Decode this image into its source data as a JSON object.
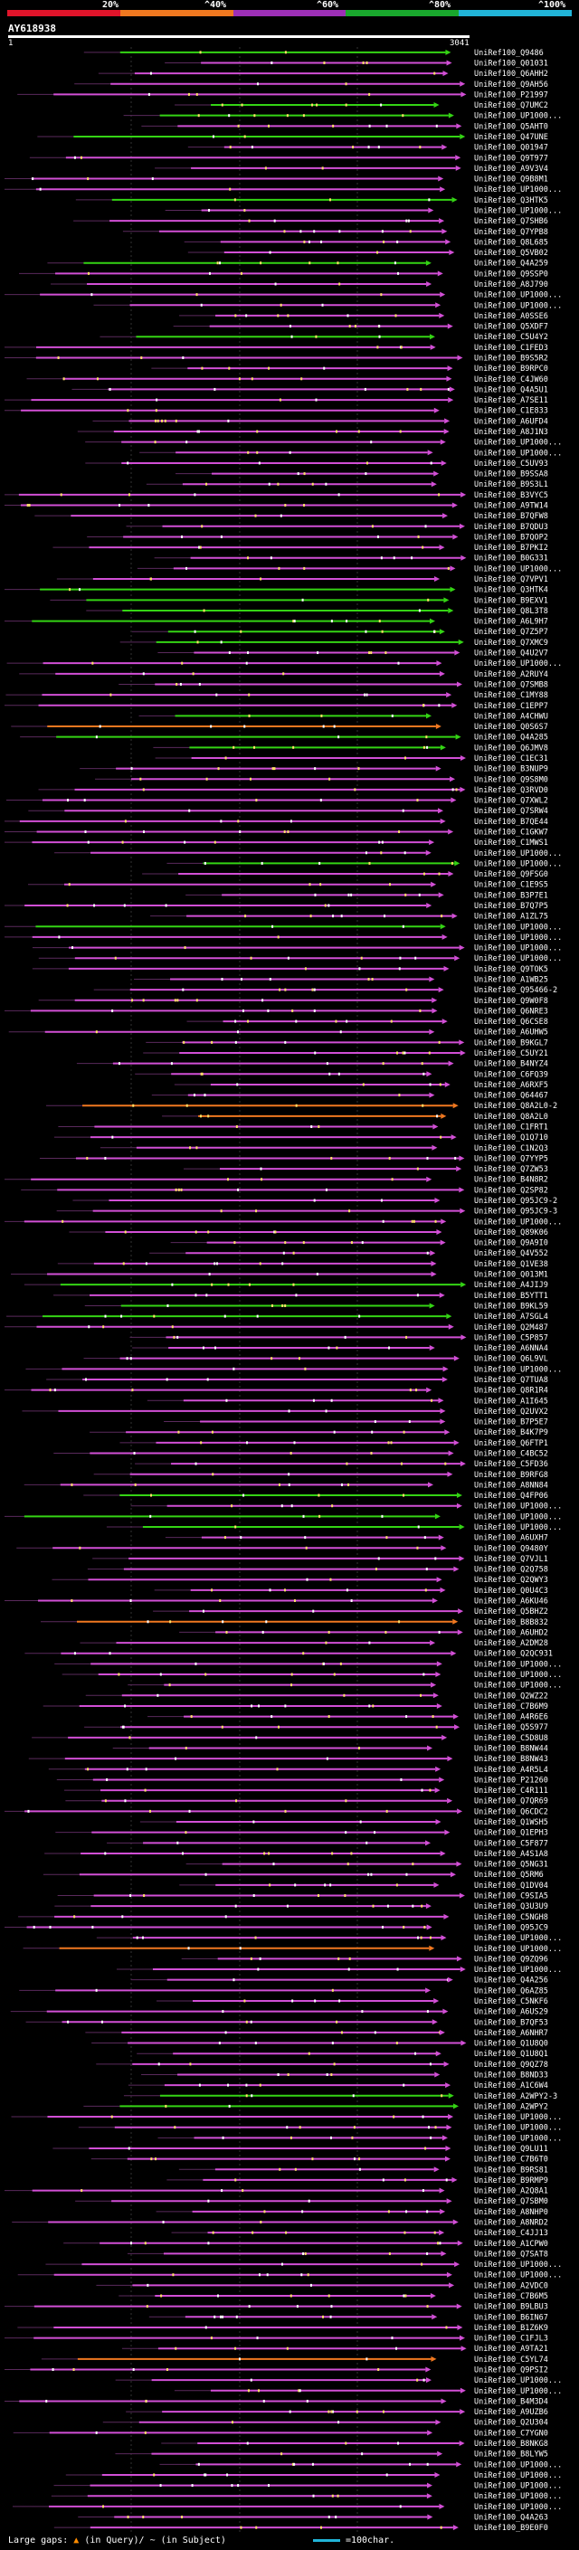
{
  "header": {
    "query_id": "AY618938",
    "start_coord": "1",
    "end_coord": "3041",
    "pct_labels": [
      "20%",
      "^40%",
      "^60%",
      "^80%",
      "^100%"
    ],
    "pct_colors": [
      "#e0142a",
      "#f07820",
      "#9d2fb6",
      "#19a82d",
      "#21b4d8"
    ]
  },
  "footer": {
    "large_gaps_label": "Large gaps:",
    "in_query_label": "(in Query)/",
    "in_subject_label": "(in Subject)",
    "scale_label": "=100char."
  },
  "hits": [
    {
      "id": "UniRef100_Q9486",
      "c": "g"
    },
    {
      "id": "UniRef100_Q01031",
      "c": "m"
    },
    {
      "id": "UniRef100_Q6AHH2",
      "c": "m"
    },
    {
      "id": "UniRef100_Q9AH56",
      "c": "m"
    },
    {
      "id": "UniRef100_P21997",
      "c": "m"
    },
    {
      "id": "UniRef100_Q7UMC2",
      "c": "g"
    },
    {
      "id": "UniRef100_UP1000...",
      "c": "g"
    },
    {
      "id": "UniRef100_Q5AHT0",
      "c": "m"
    },
    {
      "id": "UniRef100_Q47UNE",
      "c": "g"
    },
    {
      "id": "UniRef100_Q01947",
      "c": "m"
    },
    {
      "id": "UniRef100_Q9T977",
      "c": "m"
    },
    {
      "id": "UniRef100_A9V3V4",
      "c": "m"
    },
    {
      "id": "UniRef100_Q9B8M1",
      "c": "m"
    },
    {
      "id": "UniRef100_UP1000...",
      "c": "m"
    },
    {
      "id": "UniRef100_Q3HTK5",
      "c": "g"
    },
    {
      "id": "UniRef100_UP1000...",
      "c": "m"
    },
    {
      "id": "UniRef100_Q7SHB6",
      "c": "m"
    },
    {
      "id": "UniRef100_Q7YPB8",
      "c": "m"
    },
    {
      "id": "UniRef100_Q8L685",
      "c": "m"
    },
    {
      "id": "UniRef100_Q5VB02",
      "c": "m"
    },
    {
      "id": "UniRef100_Q4A259",
      "c": "g"
    },
    {
      "id": "UniRef100_Q9SSP0",
      "c": "m"
    },
    {
      "id": "UniRef100_A8J790",
      "c": "m"
    },
    {
      "id": "UniRef100_UP1000...",
      "c": "m"
    },
    {
      "id": "UniRef100_UP1000...",
      "c": "m"
    },
    {
      "id": "UniRef100_A0SSE6",
      "c": "m"
    },
    {
      "id": "UniRef100_Q5XDF7",
      "c": "m"
    },
    {
      "id": "UniRef100_C5U4Y2",
      "c": "g"
    },
    {
      "id": "UniRef100_C1FED3",
      "c": "m"
    },
    {
      "id": "UniRef100_B9S5R2",
      "c": "m"
    },
    {
      "id": "UniRef100_B9RPC0",
      "c": "m"
    },
    {
      "id": "UniRef100_C4JW60",
      "c": "m"
    },
    {
      "id": "UniRef100_Q4A5U1",
      "c": "m"
    },
    {
      "id": "UniRef100_A7SE11",
      "c": "m"
    },
    {
      "id": "UniRef100_C1E833",
      "c": "m"
    },
    {
      "id": "UniRef100_A6UFD4",
      "c": "m"
    },
    {
      "id": "UniRef100_A8J1N3",
      "c": "m"
    },
    {
      "id": "UniRef100_UP1000...",
      "c": "m"
    },
    {
      "id": "UniRef100_UP1000...",
      "c": "m"
    },
    {
      "id": "UniRef100_C5UV93",
      "c": "m"
    },
    {
      "id": "UniRef100_B9SSA8",
      "c": "m"
    },
    {
      "id": "UniRef100_B9S3L1",
      "c": "m"
    },
    {
      "id": "UniRef100_B3VYC5",
      "c": "m"
    },
    {
      "id": "UniRef100_A9TW14",
      "c": "m"
    },
    {
      "id": "UniRef100_B7QFW8",
      "c": "m"
    },
    {
      "id": "UniRef100_B7QDU3",
      "c": "m"
    },
    {
      "id": "UniRef100_B7QOP2",
      "c": "m"
    },
    {
      "id": "UniRef100_B7PKI2",
      "c": "m"
    },
    {
      "id": "UniRef100_B0G331",
      "c": "m"
    },
    {
      "id": "UniRef100_UP1000...",
      "c": "m"
    },
    {
      "id": "UniRef100_Q7VPV1",
      "c": "m"
    },
    {
      "id": "UniRef100_Q3HTK4",
      "c": "g"
    },
    {
      "id": "UniRef100_B9EXV1",
      "c": "g"
    },
    {
      "id": "UniRef100_Q8L3T8",
      "c": "g"
    },
    {
      "id": "UniRef100_A6L9H7",
      "c": "g"
    },
    {
      "id": "UniRef100_Q7Z5P7",
      "c": "g"
    },
    {
      "id": "UniRef100_Q7XMC9",
      "c": "g"
    },
    {
      "id": "UniRef100_Q4U2V7",
      "c": "m"
    },
    {
      "id": "UniRef100_UP1000...",
      "c": "m"
    },
    {
      "id": "UniRef100_A2RUY4",
      "c": "m"
    },
    {
      "id": "UniRef100_Q7SMB8",
      "c": "m"
    },
    {
      "id": "UniRef100_C1MY88",
      "c": "m"
    },
    {
      "id": "UniRef100_C1EPP7",
      "c": "m"
    },
    {
      "id": "UniRef100_A4CHWU",
      "c": "g"
    },
    {
      "id": "UniRef100_Q0S6S7",
      "c": "o"
    },
    {
      "id": "UniRef100_Q4A285",
      "c": "g"
    },
    {
      "id": "UniRef100_Q6JMV8",
      "c": "g"
    },
    {
      "id": "UniRef100_C1EC31",
      "c": "m"
    },
    {
      "id": "UniRef100_B3NUP9",
      "c": "m"
    },
    {
      "id": "UniRef100_Q9S8M0",
      "c": "m"
    },
    {
      "id": "UniRef100_Q3RVD0",
      "c": "m"
    },
    {
      "id": "UniRef100_Q7XWL2",
      "c": "m"
    },
    {
      "id": "UniRef100_Q7SRW4",
      "c": "m"
    },
    {
      "id": "UniRef100_B7QE44",
      "c": "m"
    },
    {
      "id": "UniRef100_C1GKW7",
      "c": "m"
    },
    {
      "id": "UniRef100_C1MWS1",
      "c": "m"
    },
    {
      "id": "UniRef100_UP1000...",
      "c": "m"
    },
    {
      "id": "UniRef100_UP1000...",
      "c": "g"
    },
    {
      "id": "UniRef100_Q9FSG0",
      "c": "m"
    },
    {
      "id": "UniRef100_C1E9S5",
      "c": "m"
    },
    {
      "id": "UniRef100_B3P7E1",
      "c": "m"
    },
    {
      "id": "UniRef100_B7Q7P5",
      "c": "m"
    },
    {
      "id": "UniRef100_A1ZL75",
      "c": "m"
    },
    {
      "id": "UniRef100_UP1000...",
      "c": "g"
    },
    {
      "id": "UniRef100_UP1000...",
      "c": "m"
    },
    {
      "id": "UniRef100_UP1000...",
      "c": "m"
    },
    {
      "id": "UniRef100_UP1000...",
      "c": "m"
    },
    {
      "id": "UniRef100_Q9TOK5",
      "c": "m"
    },
    {
      "id": "UniRef100_A1WB25",
      "c": "m"
    },
    {
      "id": "UniRef100_Q95466-2",
      "c": "m"
    },
    {
      "id": "UniRef100_Q9W0F8",
      "c": "m"
    },
    {
      "id": "UniRef100_Q6NRE3",
      "c": "m"
    },
    {
      "id": "UniRef100_Q6CSE8",
      "c": "m"
    },
    {
      "id": "UniRef100_A6UHW5",
      "c": "m"
    },
    {
      "id": "UniRef100_B9KGL7",
      "c": "m"
    },
    {
      "id": "UniRef100_C5UY21",
      "c": "m"
    },
    {
      "id": "UniRef100_B4NYZ4",
      "c": "m"
    },
    {
      "id": "UniRef100_C6FQ39",
      "c": "m"
    },
    {
      "id": "UniRef100_A6RXF5",
      "c": "m"
    },
    {
      "id": "UniRef100_Q64467",
      "c": "m"
    },
    {
      "id": "UniRef100_Q8A2L0-2",
      "c": "o"
    },
    {
      "id": "UniRef100_Q8A2L0",
      "c": "o"
    },
    {
      "id": "UniRef100_C1FRT1",
      "c": "m"
    },
    {
      "id": "UniRef100_Q1Q710",
      "c": "m"
    },
    {
      "id": "UniRef100_C1N2Q3",
      "c": "m"
    },
    {
      "id": "UniRef100_Q7YYP5",
      "c": "m"
    },
    {
      "id": "UniRef100_Q7ZW53",
      "c": "m"
    },
    {
      "id": "UniRef100_B4N8R2",
      "c": "m"
    },
    {
      "id": "UniRef100_Q2SP82",
      "c": "m"
    },
    {
      "id": "UniRef100_Q95JC9-2",
      "c": "m"
    },
    {
      "id": "UniRef100_Q95JC9-3",
      "c": "m"
    },
    {
      "id": "UniRef100_UP1000...",
      "c": "m"
    },
    {
      "id": "UniRef100_Q89K06",
      "c": "m"
    },
    {
      "id": "UniRef100_Q9A9I0",
      "c": "m"
    },
    {
      "id": "UniRef100_Q4V552",
      "c": "m"
    },
    {
      "id": "UniRef100_Q1VE38",
      "c": "m"
    },
    {
      "id": "UniRef100_Q013M1",
      "c": "m"
    },
    {
      "id": "UniRef100_A4JIJ9",
      "c": "g"
    },
    {
      "id": "UniRef100_B5YTT1",
      "c": "m"
    },
    {
      "id": "UniRef100_B9KL59",
      "c": "g"
    },
    {
      "id": "UniRef100_A7SGL4",
      "c": "g"
    },
    {
      "id": "UniRef100_Q2M487",
      "c": "m"
    },
    {
      "id": "UniRef100_C5P857",
      "c": "m"
    },
    {
      "id": "UniRef100_A6NNA4",
      "c": "m"
    },
    {
      "id": "UniRef100_Q6L9VL",
      "c": "m"
    },
    {
      "id": "UniRef100_UP1000...",
      "c": "m"
    },
    {
      "id": "UniRef100_Q7TUA8",
      "c": "m"
    },
    {
      "id": "UniRef100_Q8R1R4",
      "c": "m"
    },
    {
      "id": "UniRef100_A1I645",
      "c": "m"
    },
    {
      "id": "UniRef100_Q2UVX2",
      "c": "m"
    },
    {
      "id": "UniRef100_B7P5E7",
      "c": "m"
    },
    {
      "id": "UniRef100_B4K7P9",
      "c": "m"
    },
    {
      "id": "UniRef100_Q6FTP1",
      "c": "m"
    },
    {
      "id": "UniRef100_C4BC52",
      "c": "m"
    },
    {
      "id": "UniRef100_C5FD36",
      "c": "m"
    },
    {
      "id": "UniRef100_B9RFG8",
      "c": "m"
    },
    {
      "id": "UniRef100_A8NN84",
      "c": "m"
    },
    {
      "id": "UniRef100_Q4FP06",
      "c": "g"
    },
    {
      "id": "UniRef100_UP1000...",
      "c": "m"
    },
    {
      "id": "UniRef100_UP1000...",
      "c": "g"
    },
    {
      "id": "UniRef100_UP1000...",
      "c": "g"
    },
    {
      "id": "UniRef100_A6UXH7",
      "c": "m"
    },
    {
      "id": "UniRef100_Q9480Y",
      "c": "m"
    },
    {
      "id": "UniRef100_Q7VJL1",
      "c": "m"
    },
    {
      "id": "UniRef100_Q2Q758",
      "c": "m"
    },
    {
      "id": "UniRef100_Q2QWY3",
      "c": "m"
    },
    {
      "id": "UniRef100_Q0U4C3",
      "c": "m"
    },
    {
      "id": "UniRef100_A6KU46",
      "c": "m"
    },
    {
      "id": "UniRef100_Q5BHZ2",
      "c": "m"
    },
    {
      "id": "UniRef100_B8B832",
      "c": "o"
    },
    {
      "id": "UniRef100_A6UHD2",
      "c": "m"
    },
    {
      "id": "UniRef100_A2DM28",
      "c": "m"
    },
    {
      "id": "UniRef100_Q2QC931",
      "c": "m"
    },
    {
      "id": "UniRef100_UP1000...",
      "c": "m"
    },
    {
      "id": "UniRef100_UP1000...",
      "c": "m"
    },
    {
      "id": "UniRef100_UP1000...",
      "c": "m"
    },
    {
      "id": "UniRef100_Q2WZ22",
      "c": "m"
    },
    {
      "id": "UniRef100_C7B6M9",
      "c": "m"
    },
    {
      "id": "UniRef100_A4R6E6",
      "c": "m"
    },
    {
      "id": "UniRef100_Q5S977",
      "c": "m"
    },
    {
      "id": "UniRef100_C5D8U8",
      "c": "m"
    },
    {
      "id": "UniRef100_B8NW44",
      "c": "m"
    },
    {
      "id": "UniRef100_B8NW43",
      "c": "m"
    },
    {
      "id": "UniRef100_A4R5L4",
      "c": "m"
    },
    {
      "id": "UniRef100_P21260",
      "c": "m"
    },
    {
      "id": "UniRef100_C4R111",
      "c": "m"
    },
    {
      "id": "UniRef100_Q7QR69",
      "c": "m"
    },
    {
      "id": "UniRef100_Q6CDC2",
      "c": "m"
    },
    {
      "id": "UniRef100_Q1WSH5",
      "c": "m"
    },
    {
      "id": "UniRef100_Q1EPH3",
      "c": "m"
    },
    {
      "id": "UniRef100_C5F877",
      "c": "m"
    },
    {
      "id": "UniRef100_A4S1A8",
      "c": "m"
    },
    {
      "id": "UniRef100_Q5NG31",
      "c": "m"
    },
    {
      "id": "UniRef100_Q5RM6",
      "c": "m"
    },
    {
      "id": "UniRef100_Q1DV04",
      "c": "m"
    },
    {
      "id": "UniRef100_C9SIA5",
      "c": "m"
    },
    {
      "id": "UniRef100_Q3U3U9",
      "c": "m"
    },
    {
      "id": "UniRef100_C5NGH8",
      "c": "m"
    },
    {
      "id": "UniRef100_Q95JC9",
      "c": "m"
    },
    {
      "id": "UniRef100_UP1000...",
      "c": "m"
    },
    {
      "id": "UniRef100_UP1000...",
      "c": "o"
    },
    {
      "id": "UniRef100_Q9ZQ96",
      "c": "m"
    },
    {
      "id": "UniRef100_UP1000...",
      "c": "m"
    },
    {
      "id": "UniRef100_Q4A256",
      "c": "m"
    },
    {
      "id": "UniRef100_Q6AZ85",
      "c": "m"
    },
    {
      "id": "UniRef100_C5NKF6",
      "c": "m"
    },
    {
      "id": "UniRef100_A6US29",
      "c": "m"
    },
    {
      "id": "UniRef100_B7QF53",
      "c": "m"
    },
    {
      "id": "UniRef100_A6NHR7",
      "c": "m"
    },
    {
      "id": "UniRef100_Q1U8Q0",
      "c": "m"
    },
    {
      "id": "UniRef100_Q1U8Q1",
      "c": "m"
    },
    {
      "id": "UniRef100_Q9QZ78",
      "c": "m"
    },
    {
      "id": "UniRef100_B8ND33",
      "c": "m"
    },
    {
      "id": "UniRef100_A1C6W4",
      "c": "m"
    },
    {
      "id": "UniRef100_A2WPY2-3",
      "c": "g"
    },
    {
      "id": "UniRef100_A2WPY2",
      "c": "g"
    },
    {
      "id": "UniRef100_UP1000...",
      "c": "m"
    },
    {
      "id": "UniRef100_UP1000...",
      "c": "m"
    },
    {
      "id": "UniRef100_UP1000...",
      "c": "m"
    },
    {
      "id": "UniRef100_Q9LU11",
      "c": "m"
    },
    {
      "id": "UniRef100_C7B6T0",
      "c": "m"
    },
    {
      "id": "UniRef100_B9RS81",
      "c": "m"
    },
    {
      "id": "UniRef100_B9RMP9",
      "c": "m"
    },
    {
      "id": "UniRef100_A2Q8A1",
      "c": "m"
    },
    {
      "id": "UniRef100_Q7SBM0",
      "c": "m"
    },
    {
      "id": "UniRef100_A8NHP0",
      "c": "m"
    },
    {
      "id": "UniRef100_A8NRD2",
      "c": "m"
    },
    {
      "id": "UniRef100_C4JJ13",
      "c": "m"
    },
    {
      "id": "UniRef100_A1CPW0",
      "c": "m"
    },
    {
      "id": "UniRef100_Q7SAT8",
      "c": "m"
    },
    {
      "id": "UniRef100_UP1000...",
      "c": "m"
    },
    {
      "id": "UniRef100_UP1000...",
      "c": "m"
    },
    {
      "id": "UniRef100_A2VDC0",
      "c": "m"
    },
    {
      "id": "UniRef100_C7B6M5",
      "c": "m"
    },
    {
      "id": "UniRef100_B9LBU3",
      "c": "m"
    },
    {
      "id": "UniRef100_B6IN67",
      "c": "m"
    },
    {
      "id": "UniRef100_B1Z6K9",
      "c": "m"
    },
    {
      "id": "UniRef100_C1FJL3",
      "c": "m"
    },
    {
      "id": "UniRef100_A9TA21",
      "c": "m"
    },
    {
      "id": "UniRef100_C5YL74",
      "c": "o"
    },
    {
      "id": "UniRef100_Q9PSI2",
      "c": "m"
    },
    {
      "id": "UniRef100_UP1000...",
      "c": "m"
    },
    {
      "id": "UniRef100_UP1000...",
      "c": "m"
    },
    {
      "id": "UniRef100_B4M3D4",
      "c": "m"
    },
    {
      "id": "UniRef100_A9UZB6",
      "c": "m"
    },
    {
      "id": "UniRef100_Q2U304",
      "c": "m"
    },
    {
      "id": "UniRef100_C7YGN0",
      "c": "m"
    },
    {
      "id": "UniRef100_B8NKG8",
      "c": "m"
    },
    {
      "id": "UniRef100_B8LYW5",
      "c": "m"
    },
    {
      "id": "UniRef100_UP1000...",
      "c": "m"
    },
    {
      "id": "UniRef100_UP1000...",
      "c": "m"
    },
    {
      "id": "UniRef100_UP1000...",
      "c": "m"
    },
    {
      "id": "UniRef100_UP1000...",
      "c": "m"
    },
    {
      "id": "UniRef100_UP1000...",
      "c": "m"
    },
    {
      "id": "UniRef100_Q4A263",
      "c": "m"
    },
    {
      "id": "UniRef100_B9E0F0",
      "c": "m"
    }
  ]
}
